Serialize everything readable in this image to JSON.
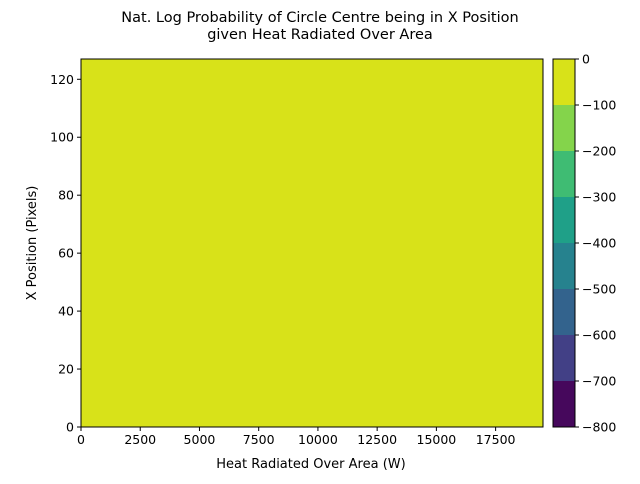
{
  "chart_data": {
    "type": "heatmap",
    "title_lines": [
      "Nat. Log Probability of Circle Centre being in X Position",
      "given Heat Radiated Over Area"
    ],
    "xlabel": "Heat Radiated Over Area (W)",
    "ylabel": "X Position (Pixels)",
    "xlim": [
      0,
      19500
    ],
    "ylim": [
      0,
      127
    ],
    "x_ticks": [
      0,
      2500,
      5000,
      7500,
      10000,
      12500,
      15000,
      17500
    ],
    "x_tick_labels": [
      "0",
      "2500",
      "5000",
      "7500",
      "10000",
      "12500",
      "15000",
      "17500"
    ],
    "y_ticks": [
      0,
      20,
      40,
      60,
      80,
      100,
      120
    ],
    "y_tick_labels": [
      "0",
      "20",
      "40",
      "60",
      "80",
      "100",
      "120"
    ],
    "filled_regions": [
      {
        "x_range": [
          0,
          19500
        ],
        "y_range": [
          0,
          127
        ],
        "level_range": [
          -100,
          0
        ],
        "color": "#d8e219"
      }
    ],
    "colorbar": {
      "min": -800,
      "max": 0,
      "ticks": [
        0,
        -100,
        -200,
        -300,
        -400,
        -500,
        -600,
        -700,
        -800
      ],
      "tick_labels": [
        "0",
        "−100",
        "−200",
        "−300",
        "−400",
        "−500",
        "−600",
        "−700",
        "−800"
      ],
      "levels": [
        {
          "range": [
            -800,
            -700
          ],
          "color": "#46085c"
        },
        {
          "range": [
            -700,
            -600
          ],
          "color": "#424086"
        },
        {
          "range": [
            -600,
            -500
          ],
          "color": "#33638d"
        },
        {
          "range": [
            -500,
            -400
          ],
          "color": "#26828e"
        },
        {
          "range": [
            -400,
            -300
          ],
          "color": "#1fa088"
        },
        {
          "range": [
            -300,
            -200
          ],
          "color": "#3fbc73"
        },
        {
          "range": [
            -200,
            -100
          ],
          "color": "#84d44b"
        },
        {
          "range": [
            -100,
            0
          ],
          "color": "#d8e219"
        }
      ]
    }
  }
}
